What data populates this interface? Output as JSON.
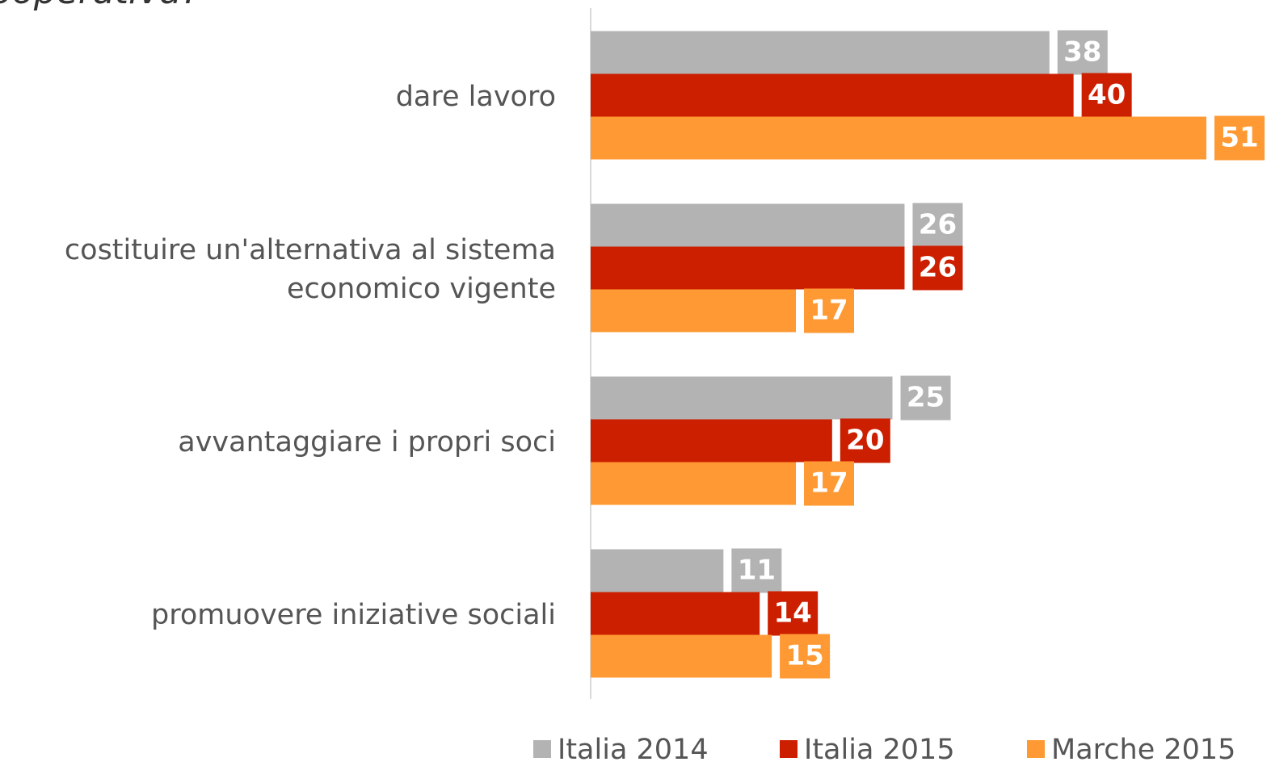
{
  "chart_data": {
    "type": "hbar",
    "title": "ooperativa?",
    "categories": [
      "dare lavoro",
      "costituire un'alternativa al sistema\neconomico vigente",
      "avvantaggiare i propri soci",
      "promuovere iniziative sociali"
    ],
    "series": [
      {
        "name": "Italia 2014",
        "color": "#b3b3b3",
        "values": [
          38,
          26,
          25,
          11
        ]
      },
      {
        "name": "Italia 2015",
        "color": "#cc1f00",
        "values": [
          40,
          26,
          20,
          14
        ]
      },
      {
        "name": "Marche 2015",
        "color": "#ff9933",
        "values": [
          51,
          17,
          17,
          15
        ]
      }
    ],
    "legend": "bottom"
  }
}
